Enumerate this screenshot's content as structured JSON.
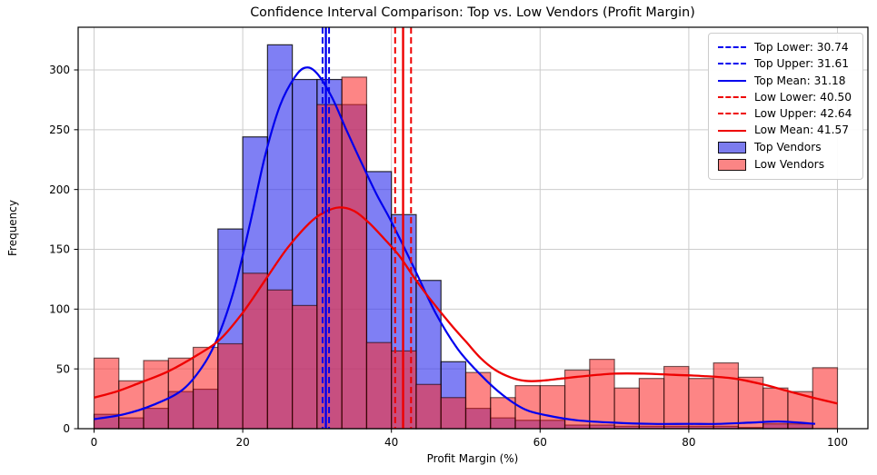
{
  "chart_data": {
    "type": "histogram",
    "title": "Confidence Interval Comparison: Top vs. Low Vendors (Profit Margin)",
    "xlabel": "Profit Margin (%)",
    "ylabel": "Frequency",
    "xticks": [
      0,
      20,
      40,
      60,
      80,
      100
    ],
    "yticks": [
      0,
      50,
      100,
      150,
      200,
      250,
      300
    ],
    "xlim": [
      -2.1,
      104.1
    ],
    "ylim": [
      0,
      335.7
    ],
    "grid": true,
    "legend_position": "upper right",
    "bin_start": 0,
    "bin_width": 3.3333,
    "series": [
      {
        "name": "Top Vendors",
        "fill": "rgba(48,48,238,0.62)",
        "edge": "rgba(0,0,0,0.8)",
        "values": [
          12,
          9,
          17,
          31,
          33,
          167,
          244,
          321,
          292,
          292,
          271,
          215,
          179,
          124,
          56,
          17,
          9,
          7,
          7,
          3,
          3,
          2,
          2,
          2,
          2,
          2,
          1,
          4,
          4,
          0
        ]
      },
      {
        "name": "Low Vendors",
        "fill": "rgba(252,44,44,0.58)",
        "edge": "rgba(20,0,0,0.6)",
        "values": [
          59,
          40,
          57,
          59,
          68,
          71,
          130,
          116,
          103,
          271,
          294,
          72,
          65,
          37,
          26,
          47,
          26,
          36,
          36,
          49,
          58,
          34,
          42,
          52,
          42,
          55,
          43,
          34,
          31,
          51
        ]
      }
    ],
    "kde": {
      "top": {
        "color": "#0000ee",
        "points": [
          [
            0,
            8
          ],
          [
            4,
            12
          ],
          [
            8,
            20
          ],
          [
            12,
            33
          ],
          [
            15,
            56
          ],
          [
            17,
            82
          ],
          [
            19,
            120
          ],
          [
            21,
            172
          ],
          [
            23,
            228
          ],
          [
            25,
            270
          ],
          [
            27,
            294
          ],
          [
            28.5,
            302
          ],
          [
            30,
            297
          ],
          [
            32,
            277
          ],
          [
            34,
            249
          ],
          [
            36,
            222
          ],
          [
            38,
            196
          ],
          [
            40,
            173
          ],
          [
            43,
            135
          ],
          [
            46,
            96
          ],
          [
            49,
            66
          ],
          [
            52,
            45
          ],
          [
            55,
            28
          ],
          [
            58,
            16
          ],
          [
            61,
            11
          ],
          [
            65,
            7
          ],
          [
            70,
            5
          ],
          [
            75,
            4
          ],
          [
            80,
            4
          ],
          [
            84,
            4
          ],
          [
            88,
            5
          ],
          [
            92,
            6
          ],
          [
            95,
            5
          ],
          [
            97,
            4
          ]
        ]
      },
      "low": {
        "color": "#ee0000",
        "points": [
          [
            0,
            26
          ],
          [
            3,
            31
          ],
          [
            6,
            38
          ],
          [
            10,
            48
          ],
          [
            14,
            62
          ],
          [
            17,
            75
          ],
          [
            20,
            97
          ],
          [
            23,
            124
          ],
          [
            26,
            151
          ],
          [
            29,
            172
          ],
          [
            31,
            181
          ],
          [
            33,
            185
          ],
          [
            35,
            182
          ],
          [
            37,
            172
          ],
          [
            39,
            159
          ],
          [
            41,
            145
          ],
          [
            43,
            127
          ],
          [
            45,
            110
          ],
          [
            48,
            87
          ],
          [
            50,
            73
          ],
          [
            52,
            59
          ],
          [
            54,
            49
          ],
          [
            56,
            43
          ],
          [
            58,
            40
          ],
          [
            60,
            40
          ],
          [
            63,
            42
          ],
          [
            66,
            44
          ],
          [
            70,
            46
          ],
          [
            74,
            46
          ],
          [
            78,
            45
          ],
          [
            82,
            44
          ],
          [
            86,
            42
          ],
          [
            90,
            37
          ],
          [
            93,
            32
          ],
          [
            96,
            27
          ],
          [
            100,
            21
          ]
        ]
      }
    },
    "vlines": [
      {
        "x": 30.74,
        "style": "dashed",
        "color": "#0000ee",
        "name": "top-lower-ci-line"
      },
      {
        "x": 31.61,
        "style": "dashed",
        "color": "#0000ee",
        "name": "top-upper-ci-line"
      },
      {
        "x": 31.18,
        "style": "solid",
        "color": "#0000ee",
        "name": "top-mean-line"
      },
      {
        "x": 40.5,
        "style": "dashed",
        "color": "#ee0000",
        "name": "low-lower-ci-line"
      },
      {
        "x": 42.64,
        "style": "dashed",
        "color": "#ee0000",
        "name": "low-upper-ci-line"
      },
      {
        "x": 41.57,
        "style": "solid",
        "color": "#ee0000",
        "name": "low-mean-line"
      }
    ],
    "ci_values": {
      "top_lower": 30.74,
      "top_upper": 31.61,
      "top_mean": 31.18,
      "low_lower": 40.5,
      "low_upper": 42.64,
      "low_mean": 41.57
    },
    "legend": [
      {
        "label": "Top Lower: 30.74",
        "glyph": "line",
        "dash": true,
        "color": "#0000ee"
      },
      {
        "label": "Top Upper: 31.61",
        "glyph": "line",
        "dash": true,
        "color": "#0000ee"
      },
      {
        "label": "Top Mean: 31.18",
        "glyph": "line",
        "dash": false,
        "color": "#0000ee"
      },
      {
        "label": "Low Lower: 40.50",
        "glyph": "line",
        "dash": true,
        "color": "#ee0000"
      },
      {
        "label": "Low Upper: 42.64",
        "glyph": "line",
        "dash": true,
        "color": "#ee0000"
      },
      {
        "label": "Low Mean: 41.57",
        "glyph": "line",
        "dash": false,
        "color": "#ee0000"
      },
      {
        "label": "Top Vendors",
        "glyph": "patch",
        "fill": "#7c7cee"
      },
      {
        "label": "Low Vendors",
        "glyph": "patch",
        "fill": "#fb8585"
      }
    ],
    "colors": {
      "grid": "#cccccc",
      "spine": "#000000"
    }
  }
}
